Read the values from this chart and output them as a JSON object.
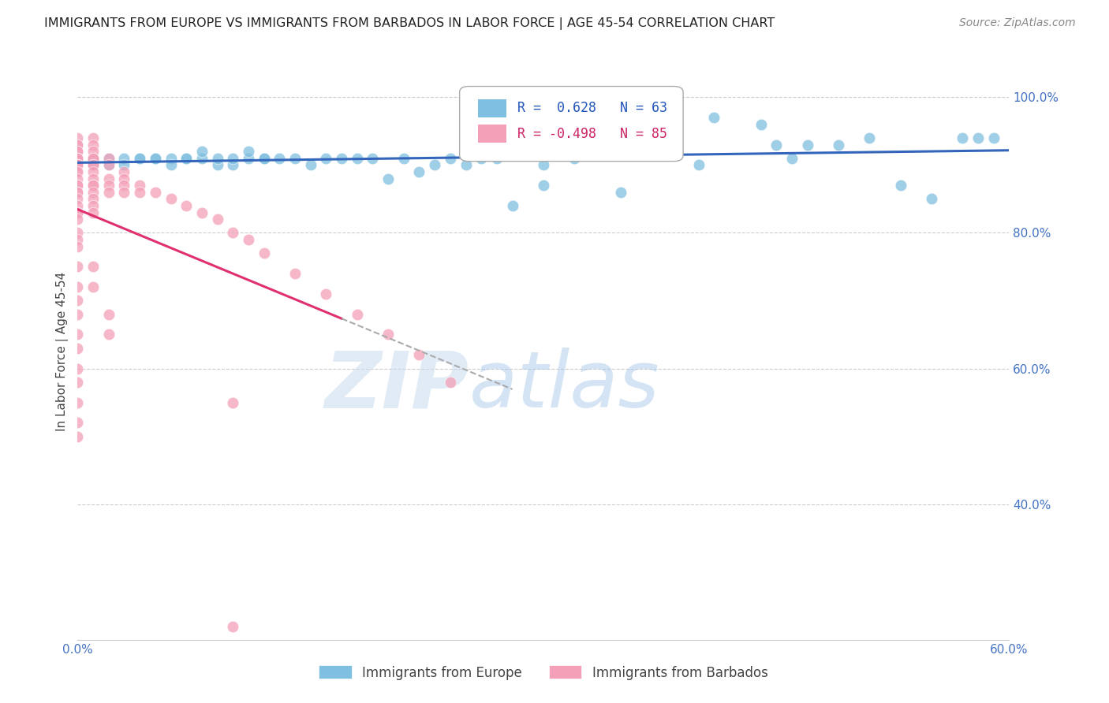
{
  "title": "IMMIGRANTS FROM EUROPE VS IMMIGRANTS FROM BARBADOS IN LABOR FORCE | AGE 45-54 CORRELATION CHART",
  "source": "Source: ZipAtlas.com",
  "ylabel": "In Labor Force | Age 45-54",
  "xlim": [
    0.0,
    0.6
  ],
  "ylim": [
    0.2,
    1.05
  ],
  "europe_color": "#7FBFDF",
  "barbados_color": "#F4A0B8",
  "europe_line_color": "#3366BB",
  "barbados_line_color": "#E03070",
  "europe_R": 0.628,
  "europe_N": 63,
  "barbados_R": -0.498,
  "barbados_N": 85,
  "legend_europe": "Immigrants from Europe",
  "legend_barbados": "Immigrants from Barbados",
  "axis_color": "#4472C4",
  "grid_color": "#CCCCCC",
  "europe_scatter_x": [
    0.01,
    0.01,
    0.02,
    0.02,
    0.03,
    0.03,
    0.04,
    0.04,
    0.05,
    0.05,
    0.06,
    0.06,
    0.07,
    0.07,
    0.08,
    0.08,
    0.09,
    0.09,
    0.1,
    0.1,
    0.11,
    0.11,
    0.12,
    0.12,
    0.13,
    0.14,
    0.15,
    0.16,
    0.17,
    0.18,
    0.19,
    0.2,
    0.21,
    0.22,
    0.23,
    0.24,
    0.25,
    0.26,
    0.27,
    0.28,
    0.29,
    0.3,
    0.31,
    0.33,
    0.35,
    0.38,
    0.4,
    0.45,
    0.47,
    0.49,
    0.51,
    0.53,
    0.55,
    0.57,
    0.58,
    0.59,
    0.3,
    0.32,
    0.34,
    0.36,
    0.41,
    0.44,
    0.46
  ],
  "europe_scatter_y": [
    0.91,
    0.9,
    0.91,
    0.9,
    0.91,
    0.9,
    0.91,
    0.91,
    0.91,
    0.91,
    0.91,
    0.9,
    0.91,
    0.91,
    0.91,
    0.92,
    0.9,
    0.91,
    0.9,
    0.91,
    0.91,
    0.92,
    0.91,
    0.91,
    0.91,
    0.91,
    0.9,
    0.91,
    0.91,
    0.91,
    0.91,
    0.88,
    0.91,
    0.89,
    0.9,
    0.91,
    0.9,
    0.91,
    0.91,
    0.84,
    0.93,
    0.9,
    0.93,
    0.93,
    0.86,
    0.93,
    0.9,
    0.93,
    0.93,
    0.93,
    0.94,
    0.87,
    0.85,
    0.94,
    0.94,
    0.94,
    0.87,
    0.91,
    0.93,
    0.95,
    0.97,
    0.96,
    0.91
  ],
  "barbados_scatter_x": [
    0.0,
    0.0,
    0.0,
    0.0,
    0.0,
    0.0,
    0.0,
    0.0,
    0.0,
    0.0,
    0.0,
    0.0,
    0.0,
    0.0,
    0.0,
    0.0,
    0.0,
    0.0,
    0.0,
    0.0,
    0.0,
    0.0,
    0.0,
    0.0,
    0.0,
    0.0,
    0.0,
    0.0,
    0.0,
    0.0,
    0.0,
    0.0,
    0.0,
    0.0,
    0.0,
    0.0,
    0.0,
    0.0,
    0.0,
    0.0,
    0.01,
    0.01,
    0.01,
    0.01,
    0.01,
    0.01,
    0.01,
    0.01,
    0.01,
    0.01,
    0.01,
    0.01,
    0.01,
    0.01,
    0.01,
    0.02,
    0.02,
    0.02,
    0.02,
    0.02,
    0.03,
    0.03,
    0.03,
    0.03,
    0.04,
    0.04,
    0.05,
    0.06,
    0.07,
    0.08,
    0.09,
    0.1,
    0.11,
    0.12,
    0.14,
    0.16,
    0.18,
    0.2,
    0.22,
    0.24,
    0.01,
    0.01,
    0.02,
    0.02,
    0.1
  ],
  "barbados_scatter_y": [
    0.94,
    0.93,
    0.93,
    0.92,
    0.92,
    0.91,
    0.91,
    0.91,
    0.91,
    0.9,
    0.9,
    0.9,
    0.9,
    0.9,
    0.89,
    0.89,
    0.88,
    0.87,
    0.87,
    0.86,
    0.86,
    0.85,
    0.84,
    0.83,
    0.83,
    0.82,
    0.8,
    0.79,
    0.78,
    0.75,
    0.72,
    0.7,
    0.68,
    0.65,
    0.63,
    0.6,
    0.58,
    0.55,
    0.52,
    0.5,
    0.94,
    0.93,
    0.92,
    0.91,
    0.91,
    0.9,
    0.9,
    0.89,
    0.88,
    0.87,
    0.87,
    0.86,
    0.85,
    0.84,
    0.83,
    0.91,
    0.9,
    0.88,
    0.87,
    0.86,
    0.89,
    0.88,
    0.87,
    0.86,
    0.87,
    0.86,
    0.86,
    0.85,
    0.84,
    0.83,
    0.82,
    0.8,
    0.79,
    0.77,
    0.74,
    0.71,
    0.68,
    0.65,
    0.62,
    0.58,
    0.75,
    0.72,
    0.68,
    0.65,
    0.55
  ],
  "barbados_outlier_x": [
    0.1
  ],
  "barbados_outlier_y": [
    0.22
  ]
}
